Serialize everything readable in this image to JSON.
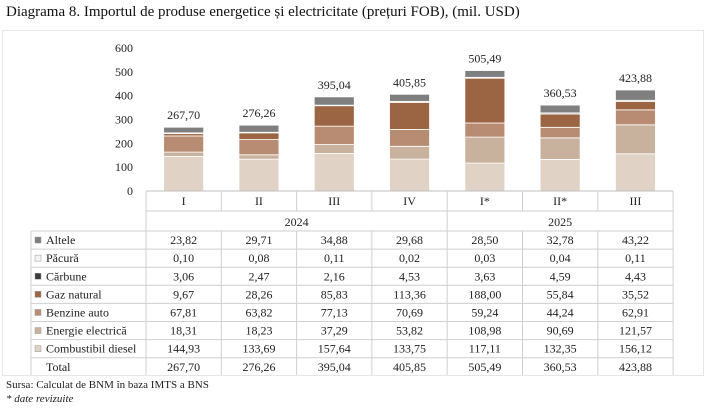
{
  "title": "Diagrama 8. Importul de produse energetice și electricitate (prețuri FOB), (mil. USD)",
  "source": "Sursa: Calculat de BNM în baza IMTS a BNS",
  "note": "* date revizuite",
  "chart_data": {
    "type": "bar",
    "stacked": true,
    "title": "Diagrama 8. Importul de produse energetice și electricitate (prețuri FOB), (mil. USD)",
    "categories": [
      "I",
      "II",
      "III",
      "IV",
      "I*",
      "II*",
      "III"
    ],
    "groups": [
      {
        "label": "2024",
        "categories": [
          "I",
          "II",
          "III",
          "IV"
        ]
      },
      {
        "label": "2025",
        "categories": [
          "I*",
          "II*",
          "III"
        ]
      }
    ],
    "ylim": [
      0,
      600
    ],
    "yticks": [
      0,
      100,
      200,
      300,
      400,
      500,
      600
    ],
    "grid": false,
    "legend": "table-left",
    "series": [
      {
        "name": "Combustibil diesel",
        "color": "#e0d2c4",
        "values": [
          144.93,
          133.69,
          157.64,
          133.75,
          117.11,
          132.35,
          156.12
        ],
        "labels": [
          "144,93",
          "133,69",
          "157,64",
          "133,75",
          "117,11",
          "132,35",
          "156,12"
        ]
      },
      {
        "name": "Energie electrică",
        "color": "#c8b29e",
        "values": [
          18.31,
          18.23,
          37.29,
          53.82,
          108.98,
          90.69,
          121.57
        ],
        "labels": [
          "18,31",
          "18,23",
          "37,29",
          "53,82",
          "108,98",
          "90,69",
          "121,57"
        ]
      },
      {
        "name": "Benzine auto",
        "color": "#b88c72",
        "values": [
          67.81,
          63.82,
          77.13,
          70.69,
          59.24,
          44.24,
          62.91
        ],
        "labels": [
          "67,81",
          "63,82",
          "77,13",
          "70,69",
          "59,24",
          "44,24",
          "62,91"
        ]
      },
      {
        "name": "Gaz natural",
        "color": "#9b6442",
        "values": [
          9.67,
          28.26,
          85.83,
          113.36,
          188.0,
          55.84,
          35.52
        ],
        "labels": [
          "9,67",
          "28,26",
          "85,83",
          "113,36",
          "188,00",
          "55,84",
          "35,52"
        ]
      },
      {
        "name": "Cărbune",
        "color": "#3a3a3a",
        "values": [
          3.06,
          2.47,
          2.16,
          4.53,
          3.63,
          4.59,
          4.43
        ],
        "labels": [
          "3,06",
          "2,47",
          "2,16",
          "4,53",
          "3,63",
          "4,59",
          "4,43"
        ]
      },
      {
        "name": "Păcură",
        "color": "#f2f2f2",
        "values": [
          0.1,
          0.08,
          0.11,
          0.02,
          0.03,
          0.04,
          0.11
        ],
        "labels": [
          "0,10",
          "0,08",
          "0,11",
          "0,02",
          "0,03",
          "0,04",
          "0,11"
        ]
      },
      {
        "name": "Altele",
        "color": "#7f7f7f",
        "values": [
          23.82,
          29.71,
          34.88,
          29.68,
          28.5,
          32.78,
          43.22
        ],
        "labels": [
          "23,82",
          "29,71",
          "34,88",
          "29,68",
          "28,50",
          "32,78",
          "43,22"
        ]
      }
    ],
    "table_rows": [
      "Altele",
      "Păcură",
      "Cărbune",
      "Gaz natural",
      "Benzine auto",
      "Energie electrică",
      "Combustibil diesel"
    ],
    "total": {
      "name": "Total",
      "values": [
        267.7,
        276.26,
        395.04,
        405.85,
        505.49,
        360.53,
        423.88
      ],
      "labels": [
        "267,70",
        "276,26",
        "395,04",
        "405,85",
        "505,49",
        "360,53",
        "423,88"
      ]
    }
  }
}
